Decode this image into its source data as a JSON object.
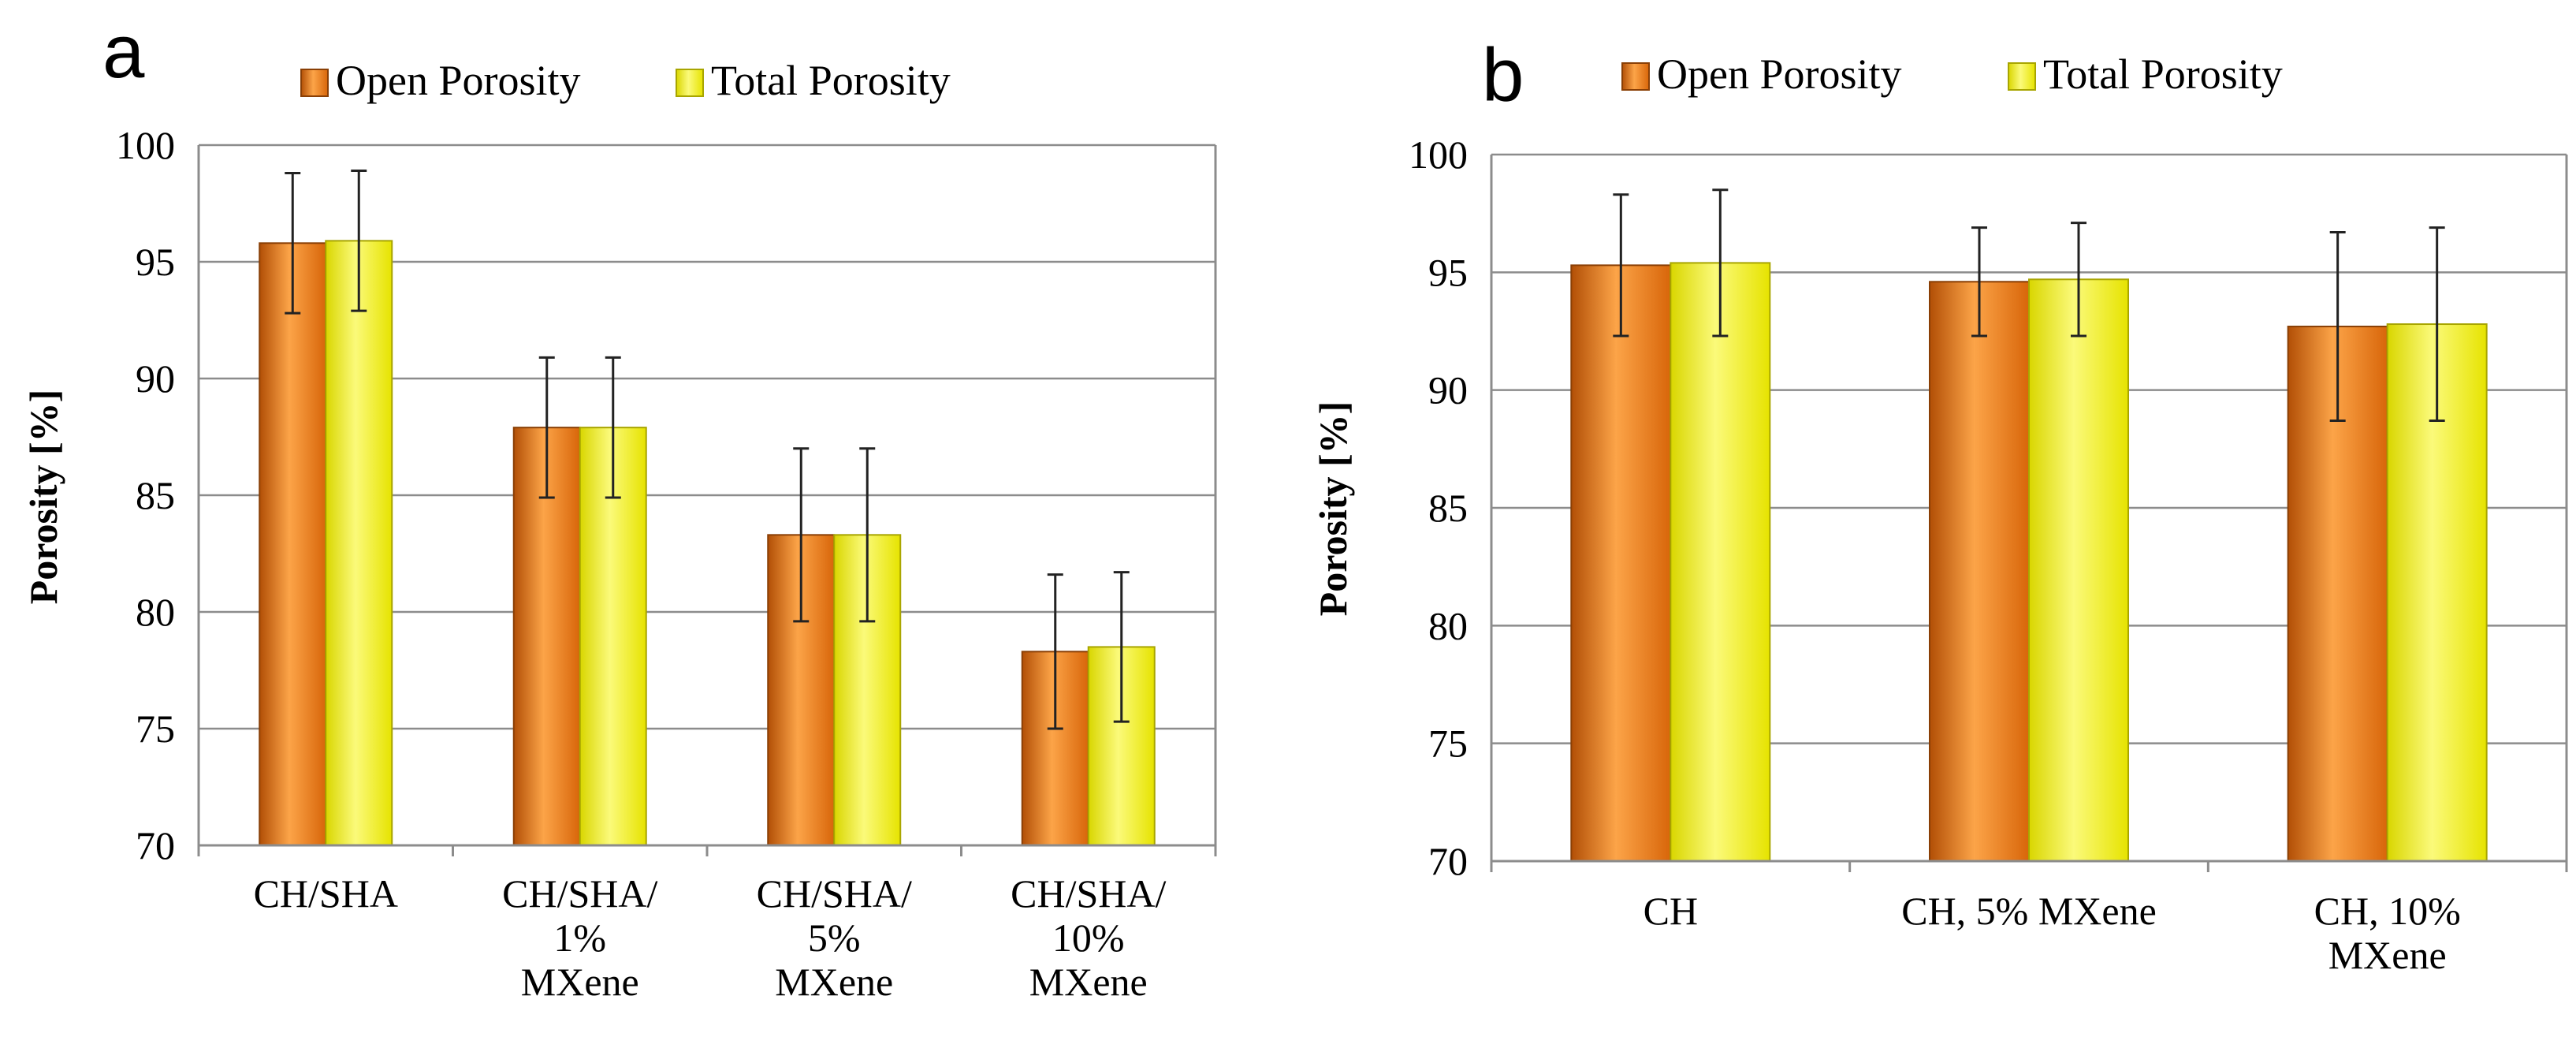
{
  "colors": {
    "open": "#f07d12",
    "open_light": "#fca448",
    "open_dark": "#b24f06",
    "total": "#f3f10a",
    "total_light": "#fbfa7a",
    "total_dark": "#c9c600",
    "grid": "#8c8c8c",
    "error_bar": "#222222"
  },
  "chart_data": [
    {
      "panel_label": "a",
      "type": "bar",
      "ylabel": "Porosity [%]",
      "ylim": [
        70,
        100
      ],
      "yticks": [
        70,
        75,
        80,
        85,
        90,
        95,
        100
      ],
      "grid": true,
      "legend_position": "top",
      "categories": [
        [
          "CH/SHA"
        ],
        [
          "CH/SHA/",
          "1%",
          "MXene"
        ],
        [
          "CH/SHA/",
          "5%",
          "MXene"
        ],
        [
          "CH/SHA/",
          "10%",
          "MXene"
        ]
      ],
      "series": [
        {
          "name": "Open Porosity",
          "values": [
            95.8,
            87.9,
            83.3,
            78.3
          ],
          "error": [
            3.0,
            3.0,
            3.7,
            3.3
          ]
        },
        {
          "name": "Total Porosity",
          "values": [
            95.9,
            87.9,
            83.3,
            78.5
          ],
          "error": [
            3.0,
            3.0,
            3.7,
            3.2
          ]
        }
      ]
    },
    {
      "panel_label": "b",
      "type": "bar",
      "ylabel": "Porosity [%]",
      "ylim": [
        70,
        100
      ],
      "yticks": [
        70,
        75,
        80,
        85,
        90,
        95,
        100
      ],
      "grid": true,
      "legend_position": "top",
      "categories": [
        [
          "CH"
        ],
        [
          "CH, 5% MXene"
        ],
        [
          "CH, 10%",
          "MXene"
        ]
      ],
      "series": [
        {
          "name": "Open Porosity",
          "values": [
            95.3,
            94.6,
            92.7
          ],
          "error": [
            3.0,
            2.3,
            4.0
          ]
        },
        {
          "name": "Total Porosity",
          "values": [
            95.4,
            94.7,
            92.8
          ],
          "error": [
            3.1,
            2.4,
            4.1
          ]
        }
      ]
    }
  ]
}
